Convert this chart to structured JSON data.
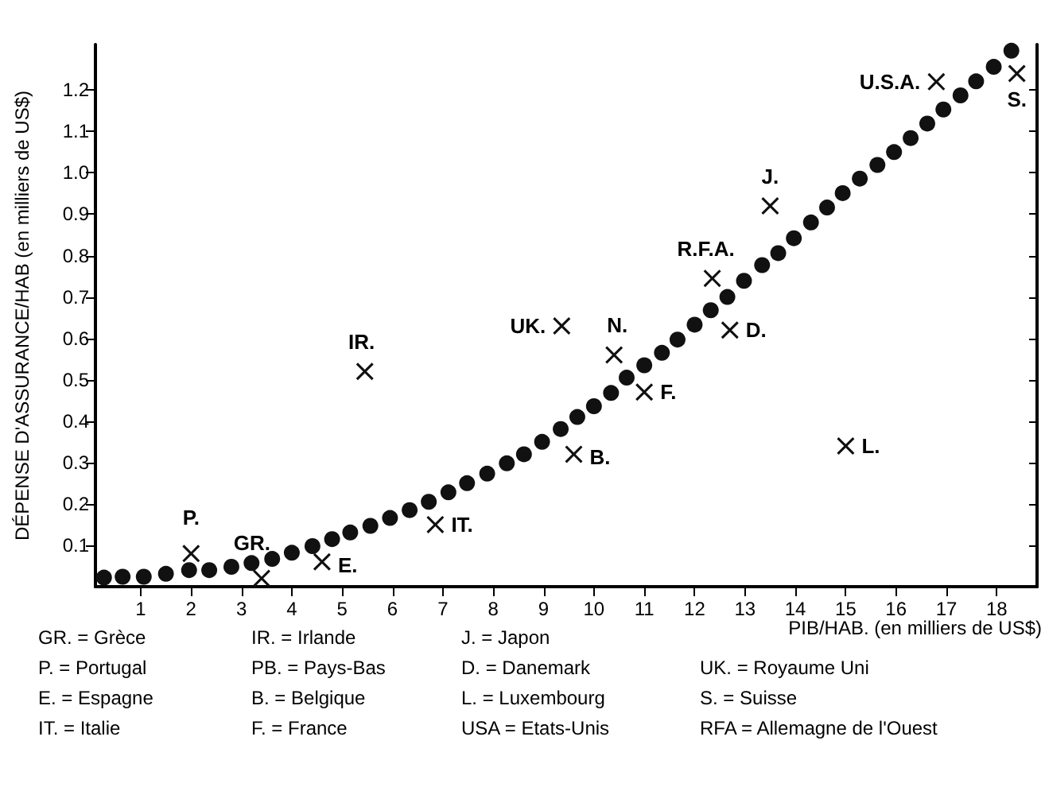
{
  "chart_data": {
    "type": "scatter",
    "xlabel": "PIB/HAB. (en milliers de US$)",
    "ylabel": "DÉPENSE D'ASSURANCE/HAB (en milliers de US$)",
    "xlim": [
      0.1,
      18.8
    ],
    "xticks": [
      1,
      2,
      3,
      4,
      5,
      6,
      7,
      8,
      9,
      10,
      11,
      12,
      13,
      14,
      15,
      16,
      17,
      18
    ],
    "ylim": [
      0,
      1.31
    ],
    "yticks": [
      0.1,
      0.2,
      0.3,
      0.4,
      0.5,
      0.6,
      0.7,
      0.8,
      0.9,
      {
        "value": 1,
        "label": "1.0"
      },
      1.1,
      1.2
    ],
    "grid": false,
    "series": [
      {
        "color": "#111111",
        "marker": "circle",
        "x": [
          0.27,
          0.64,
          1.06,
          1.5,
          1.96,
          2.36,
          2.8,
          3.2,
          3.61,
          4.0,
          4.41,
          4.8,
          5.16,
          5.56,
          5.95,
          6.34,
          6.72,
          7.11,
          7.48,
          7.88,
          8.27,
          8.61,
          8.97,
          9.34,
          9.67,
          10.0,
          10.34,
          10.65,
          11.0,
          11.35,
          11.66,
          12.0,
          12.32,
          12.65,
          12.98,
          13.34,
          13.66,
          13.97,
          14.31,
          14.63,
          14.94,
          15.28,
          15.63,
          15.96,
          16.29,
          16.62,
          16.94,
          17.28,
          17.59,
          17.94,
          18.29
        ],
        "values": [
          0.022,
          0.024,
          0.024,
          0.031,
          0.04,
          0.04,
          0.048,
          0.057,
          0.067,
          0.082,
          0.098,
          0.115,
          0.131,
          0.147,
          0.166,
          0.185,
          0.205,
          0.228,
          0.25,
          0.273,
          0.298,
          0.32,
          0.35,
          0.381,
          0.41,
          0.436,
          0.468,
          0.505,
          0.535,
          0.565,
          0.597,
          0.633,
          0.668,
          0.7,
          0.739,
          0.777,
          0.806,
          0.842,
          0.88,
          0.916,
          0.951,
          0.986,
          1.019,
          1.05,
          1.084,
          1.119,
          1.153,
          1.187,
          1.221,
          1.256,
          1.295
        ]
      },
      {
        "color": "#111111",
        "marker": "cross",
        "x": [
          2.0,
          3.4,
          4.6,
          5.45,
          6.85,
          9.36,
          10.4,
          9.6,
          11.0,
          12.7,
          12.35,
          13.5,
          15.0,
          16.8,
          18.4
        ],
        "values": [
          0.08,
          0.02,
          0.06,
          0.52,
          0.15,
          0.63,
          0.56,
          0.32,
          0.47,
          0.62,
          0.745,
          0.92,
          0.34,
          1.22,
          1.24
        ]
      }
    ],
    "annotations": [
      {
        "text": "P.",
        "x": 2.0,
        "y": 0.08
      },
      {
        "text": "GR.",
        "x": 3.4,
        "y": 0.02
      },
      {
        "text": "E.",
        "x": 4.6,
        "y": 0.06
      },
      {
        "text": "IR.",
        "x": 5.45,
        "y": 0.52
      },
      {
        "text": "IT.",
        "x": 6.85,
        "y": 0.15
      },
      {
        "text": "UK.",
        "x": 9.36,
        "y": 0.63
      },
      {
        "text": "N.",
        "x": 10.4,
        "y": 0.56
      },
      {
        "text": "B.",
        "x": 9.6,
        "y": 0.32
      },
      {
        "text": "F.",
        "x": 11.0,
        "y": 0.47
      },
      {
        "text": "D.",
        "x": 12.7,
        "y": 0.62
      },
      {
        "text": "R.F.A.",
        "x": 12.35,
        "y": 0.745
      },
      {
        "text": "J.",
        "x": 13.5,
        "y": 0.92
      },
      {
        "text": "L.",
        "x": 15.0,
        "y": 0.34
      },
      {
        "text": "U.S.A.",
        "x": 16.8,
        "y": 1.22
      },
      {
        "text": "S.",
        "x": 18.4,
        "y": 1.24
      },
      "GR. = Grèce",
      "P. = Portugal",
      "E. = Espagne",
      "IT. = Italie",
      "IR. = Irlande",
      "PB. = Pays-Bas",
      "B. = Belgique",
      "F. = France",
      "J. = Japon",
      "D. = Danemark",
      "L. = Luxembourg",
      "USA = Etats-Unis",
      "UK. = Royaume Uni",
      "S. = Suisse",
      "RFA = Allemagne de l'Ouest"
    ]
  }
}
